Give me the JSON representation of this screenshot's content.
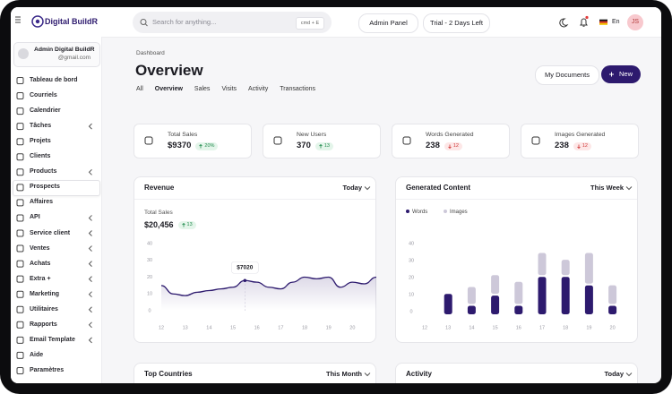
{
  "header": {
    "logo": "Digital BuildR",
    "search_placeholder": "Search for anything...",
    "shortcut": "cmd + E",
    "buttons": [
      "Admin Panel",
      "Trial - 2 Days Left"
    ],
    "language": "En",
    "avatar": "JS"
  },
  "sidebar": {
    "user": {
      "name": "Admin Digital BuildR",
      "email": "@gmail.com"
    },
    "active_index": 7,
    "items": [
      {
        "label": "Tableau de bord",
        "expandable": false
      },
      {
        "label": "Courriels",
        "expandable": false
      },
      {
        "label": "Calendrier",
        "expandable": false
      },
      {
        "label": "Tâches",
        "expandable": true
      },
      {
        "label": "Projets",
        "expandable": false
      },
      {
        "label": "Clients",
        "expandable": false
      },
      {
        "label": "Products",
        "expandable": true
      },
      {
        "label": "Prospects",
        "expandable": false
      },
      {
        "label": "Affaires",
        "expandable": false
      },
      {
        "label": "API",
        "expandable": true
      },
      {
        "label": "Service client",
        "expandable": true
      },
      {
        "label": "Ventes",
        "expandable": true
      },
      {
        "label": "Achats",
        "expandable": true
      },
      {
        "label": "Extra +",
        "expandable": true
      },
      {
        "label": "Marketing",
        "expandable": true
      },
      {
        "label": "Utilitaires",
        "expandable": true
      },
      {
        "label": "Rapports",
        "expandable": true
      },
      {
        "label": "Email Template",
        "expandable": true
      },
      {
        "label": "Aide",
        "expandable": false
      },
      {
        "label": "Paramètres",
        "expandable": false
      }
    ]
  },
  "page": {
    "breadcrumb": "Dashboard",
    "title": "Overview",
    "tabs": [
      "All",
      "Overview",
      "Sales",
      "Visits",
      "Activity",
      "Transactions"
    ],
    "active_tab": 1,
    "secondary_action": "My Documents",
    "primary_action": "New"
  },
  "stats": [
    {
      "label": "Total Sales",
      "value": "$9370",
      "change": "20%",
      "direction": "up"
    },
    {
      "label": "New Users",
      "value": "370",
      "change": "13",
      "direction": "up"
    },
    {
      "label": "Words Generated",
      "value": "238",
      "change": "12",
      "direction": "down"
    },
    {
      "label": "Images Generated",
      "value": "238",
      "change": "12",
      "direction": "down"
    }
  ],
  "revenue_chart": {
    "type": "line",
    "title": "Revenue",
    "period": "Today",
    "metric_label": "Total Sales",
    "metric_value": "$20,456",
    "metric_change": "13",
    "metric_direction": "up",
    "tooltip": "$7020",
    "x": [
      12,
      12.5,
      13,
      13.5,
      14,
      14.5,
      15,
      15.5,
      16,
      16.5,
      17,
      17.5,
      18,
      18.5,
      19,
      19.5,
      20,
      20.5,
      21
    ],
    "values": [
      15,
      10,
      9,
      11,
      12,
      13,
      14,
      18,
      17,
      14,
      13,
      17,
      20,
      19,
      20,
      14,
      17,
      16,
      20
    ],
    "xlim": [
      12,
      21
    ],
    "xticks": [
      12,
      13,
      14,
      15,
      16,
      17,
      18,
      19,
      20
    ],
    "ylim": [
      0,
      40
    ],
    "yticks": [
      0,
      10,
      20,
      30,
      40
    ],
    "color": "#2d1a6e"
  },
  "content_chart": {
    "type": "bar",
    "title": "Generated Content",
    "period": "This Week",
    "stacked": true,
    "categories": [
      "12",
      "13",
      "14",
      "15",
      "16",
      "17",
      "18",
      "19",
      "20"
    ],
    "series": [
      {
        "name": "Words",
        "color": "#2d1a6e",
        "values": [
          0,
          12,
          5,
          11,
          5,
          22,
          22,
          17,
          5
        ]
      },
      {
        "name": "Images",
        "color": "#cdc8d9",
        "values": [
          0,
          0,
          10,
          11,
          13,
          13,
          9,
          18,
          11
        ]
      }
    ],
    "ylim": [
      0,
      40
    ],
    "yticks": [
      0,
      10,
      20,
      30,
      40
    ]
  },
  "bottom_cards": [
    {
      "title": "Top Countries",
      "period": "This Month"
    },
    {
      "title": "Activity",
      "period": "Today"
    }
  ]
}
